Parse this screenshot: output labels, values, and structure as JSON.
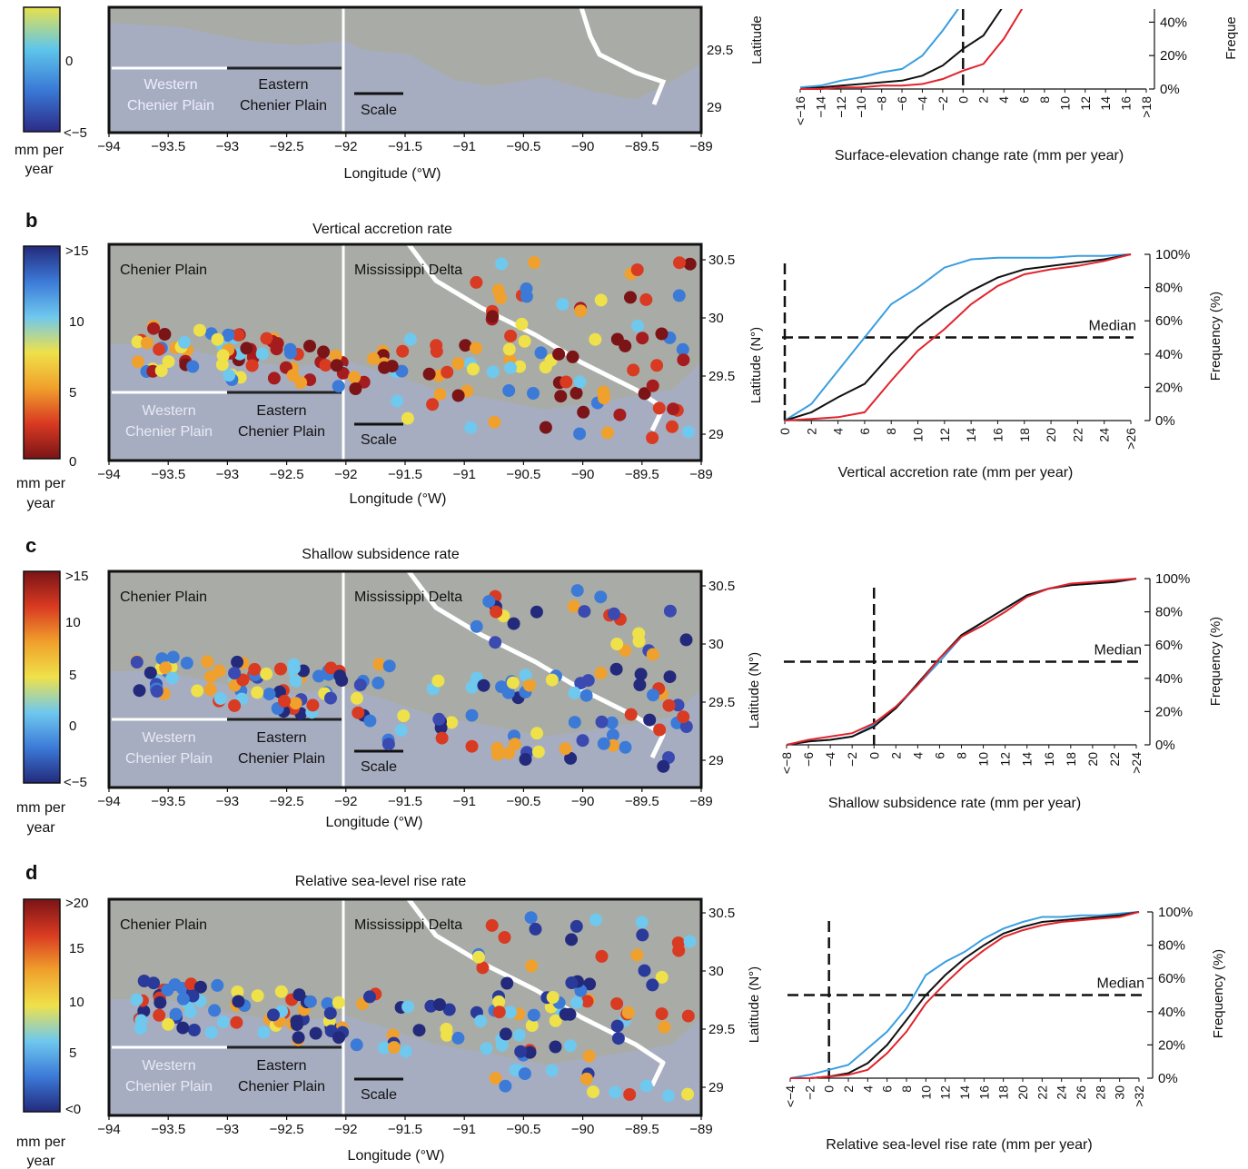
{
  "colors": {
    "cold": "#3a9ee0",
    "median": "#111111",
    "warm": "#e0242c",
    "sea": "#a6adc0",
    "land": "#a9aca6"
  },
  "common": {
    "mm_per": "mm per",
    "year": "year",
    "longitude_label": "Longitude (°W)",
    "latitude_label": "Latitude (N°)",
    "latitude_label_cut": "Latitude",
    "frequency_label": "Frequency (%)",
    "frequency_label_cut": "Freque",
    "median_label": "Median",
    "chenier_plain": "Chenier Plain",
    "mississippi_delta": "Mississippi Delta",
    "western_1": "Western",
    "western_2": "Chenier Plain",
    "eastern_1": "Eastern",
    "eastern_2": "Chenier Plain",
    "scale": "Scale",
    "lon_ticks": [
      "-94",
      "-93.5",
      "-93",
      "-92.5",
      "-92",
      "-91.5",
      "-91",
      "-90.5",
      "-90",
      "-89.5",
      "-89"
    ],
    "lat_ticks": [
      "30.5",
      "30",
      "29.5",
      "29"
    ],
    "freq_ticks": [
      "100%",
      "80%",
      "60%",
      "40%",
      "20%",
      "0%"
    ]
  },
  "panels": [
    {
      "letter": "",
      "title": "",
      "colorbar_colors": [
        "#2c2c88",
        "#3a79d6",
        "#5fc6ea",
        "#e8e14c"
      ],
      "colorbar_ticks": [
        "0",
        "<−5"
      ],
      "cdf_xlabel": "Surface-elevation change rate (mm per year)",
      "cdf_ticks": [
        "<−16",
        "−14",
        "−12",
        "−10",
        "−8",
        "−6",
        "−4",
        "−2",
        "0",
        "2",
        "4",
        "6",
        "8",
        "10",
        "12",
        "14",
        "16",
        ">18"
      ]
    },
    {
      "letter": "b",
      "title": "Vertical accretion rate",
      "colorbar_colors": [
        "#7a1416",
        "#d93a22",
        "#f0a02c",
        "#efe14a",
        "#6fc8ee",
        "#3c7ad8",
        "#232a7c"
      ],
      "colorbar_ticks": [
        ">15",
        "10",
        "5",
        "0"
      ],
      "cdf_xlabel": "Vertical accretion rate (mm per year)",
      "cdf_ticks": [
        "0",
        "2",
        "4",
        "6",
        "8",
        "10",
        "12",
        "14",
        "16",
        "18",
        "20",
        "22",
        "24",
        ">26"
      ]
    },
    {
      "letter": "c",
      "title": "Shallow subsidence rate",
      "colorbar_colors": [
        "#232a7c",
        "#3c7ad8",
        "#6fc8ee",
        "#efe14a",
        "#f0a02c",
        "#d93a22",
        "#7a1416"
      ],
      "colorbar_ticks": [
        ">15",
        "10",
        "5",
        "0",
        "<−5"
      ],
      "cdf_xlabel": "Shallow subsidence rate (mm per year)",
      "cdf_ticks": [
        "<−8",
        "−6",
        "−4",
        "−2",
        "0",
        "2",
        "4",
        "6",
        "8",
        "10",
        "12",
        "14",
        "16",
        "18",
        "20",
        "22",
        ">24"
      ]
    },
    {
      "letter": "d",
      "title": "Relative sea-level rise rate",
      "colorbar_colors": [
        "#232a7c",
        "#3c7ad8",
        "#6fc8ee",
        "#efe14a",
        "#f0a02c",
        "#d93a22",
        "#7a1416"
      ],
      "colorbar_ticks": [
        ">20",
        "15",
        "10",
        "5",
        "<0"
      ],
      "cdf_xlabel": "Relative sea-level rise rate (mm per year)",
      "cdf_ticks": [
        "<−4",
        "−2",
        "0",
        "2",
        "4",
        "6",
        "8",
        "10",
        "12",
        "14",
        "16",
        "18",
        "20",
        "22",
        "24",
        "26",
        "28",
        "30",
        ">32"
      ]
    }
  ],
  "chart_data": [
    {
      "type": "line",
      "panel": "a",
      "xlabel": "Surface-elevation change rate (mm per year)",
      "ylabel": "Frequency (%)",
      "x": [
        -16,
        -14,
        -12,
        -10,
        -8,
        -6,
        -4,
        -2,
        0,
        2,
        4,
        6
      ],
      "ylim": [
        0,
        100
      ],
      "series": [
        {
          "values": [
            1,
            2,
            5,
            7,
            10,
            12,
            20,
            35,
            52,
            70,
            86,
            100
          ]
        },
        {
          "values": [
            0,
            1,
            2,
            3,
            4,
            5,
            8,
            14,
            24,
            32,
            50,
            68
          ]
        },
        {
          "values": [
            0,
            0,
            1,
            1,
            2,
            2,
            3,
            6,
            11,
            15,
            30,
            50
          ]
        }
      ],
      "reference": {
        "x": 0,
        "y": 50
      }
    },
    {
      "type": "line",
      "panel": "b",
      "xlabel": "Vertical accretion rate (mm per year)",
      "ylabel": "Frequency (%)",
      "x": [
        0,
        2,
        4,
        6,
        8,
        10,
        12,
        14,
        16,
        18,
        20,
        22,
        24,
        26
      ],
      "ylim": [
        0,
        100
      ],
      "series": [
        {
          "values": [
            0,
            10,
            30,
            50,
            70,
            80,
            92,
            97,
            98,
            98,
            98,
            99,
            99,
            100
          ]
        },
        {
          "values": [
            0,
            5,
            14,
            22,
            40,
            56,
            68,
            78,
            86,
            91,
            93,
            95,
            97,
            100
          ]
        },
        {
          "values": [
            0,
            1,
            2,
            5,
            24,
            42,
            55,
            70,
            81,
            88,
            91,
            93,
            96,
            100
          ]
        }
      ],
      "reference": {
        "x": 0,
        "y": 50
      },
      "median_label": "Median"
    },
    {
      "type": "line",
      "panel": "c",
      "xlabel": "Shallow subsidence rate (mm per year)",
      "ylabel": "Frequency (%)",
      "x": [
        -8,
        -6,
        -4,
        -2,
        0,
        2,
        4,
        6,
        8,
        10,
        12,
        14,
        16,
        18,
        20,
        22,
        24
      ],
      "ylim": [
        0,
        100
      ],
      "series": [
        {
          "values": [
            0,
            2,
            3,
            5,
            12,
            22,
            36,
            50,
            65,
            74,
            82,
            90,
            94,
            96,
            97,
            98,
            100
          ]
        },
        {
          "values": [
            0,
            2,
            3,
            5,
            11,
            22,
            37,
            52,
            66,
            74,
            82,
            90,
            94,
            96,
            97,
            98,
            100
          ]
        },
        {
          "values": [
            0,
            3,
            5,
            7,
            13,
            23,
            36,
            52,
            65,
            72,
            80,
            89,
            94,
            97,
            98,
            99,
            100
          ]
        }
      ],
      "reference": {
        "x": 0,
        "y": 50
      },
      "median_label": "Median"
    },
    {
      "type": "line",
      "panel": "d",
      "xlabel": "Relative sea-level rise rate (mm per year)",
      "ylabel": "Frequency (%)",
      "x": [
        -4,
        -2,
        0,
        2,
        4,
        6,
        8,
        10,
        12,
        14,
        16,
        18,
        20,
        22,
        24,
        26,
        28,
        30,
        32
      ],
      "ylim": [
        0,
        100
      ],
      "series": [
        {
          "values": [
            0,
            2,
            5,
            8,
            18,
            28,
            42,
            62,
            70,
            76,
            84,
            90,
            94,
            97,
            97,
            98,
            98,
            99,
            100
          ]
        },
        {
          "values": [
            0,
            0,
            1,
            3,
            9,
            20,
            35,
            50,
            62,
            72,
            80,
            87,
            91,
            94,
            95,
            96,
            97,
            98,
            100
          ]
        },
        {
          "values": [
            0,
            0,
            1,
            2,
            5,
            15,
            28,
            45,
            57,
            68,
            77,
            85,
            89,
            92,
            94,
            95,
            96,
            97,
            100
          ]
        }
      ],
      "reference": {
        "x": 0,
        "y": 50
      },
      "median_label": "Median"
    }
  ]
}
